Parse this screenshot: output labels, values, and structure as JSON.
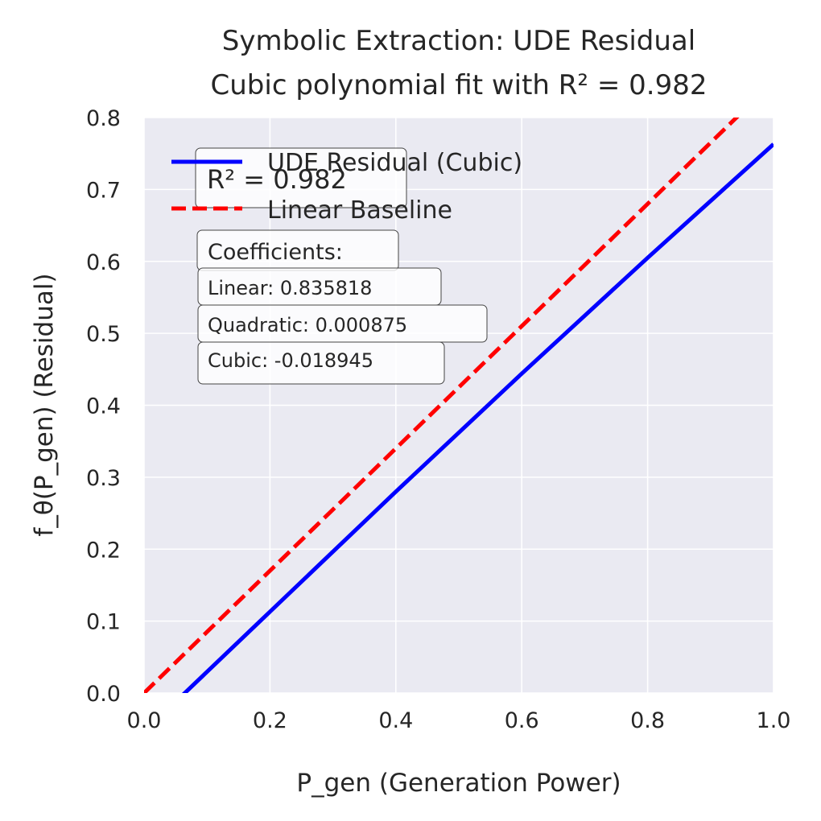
{
  "chart_data": {
    "type": "line",
    "title": "Symbolic Extraction: UDE Residual",
    "subtitle": "Cubic polynomial fit with R² = 0.982",
    "xlabel": "P_gen (Generation Power)",
    "ylabel": "f_θ(P_gen) (Residual)",
    "xlim": [
      0.0,
      1.0
    ],
    "ylim": [
      0.0,
      0.8
    ],
    "x_ticks": [
      "0.0",
      "0.2",
      "0.4",
      "0.6",
      "0.8",
      "1.0"
    ],
    "y_ticks": [
      "0.0",
      "0.1",
      "0.2",
      "0.3",
      "0.4",
      "0.5",
      "0.6",
      "0.7",
      "0.8"
    ],
    "grid": true,
    "legend_position": "top-left",
    "series": [
      {
        "name": "UDE Residual (Cubic)",
        "color": "#0000ff",
        "style": "solid",
        "x": [
          0.0,
          0.2,
          0.4,
          0.6,
          0.8,
          1.0
        ],
        "y": [
          -0.054,
          0.113,
          0.28,
          0.444,
          0.605,
          0.763
        ]
      },
      {
        "name": "Linear Baseline",
        "color": "#ff0000",
        "style": "dashed",
        "x": [
          0.0,
          0.2,
          0.4,
          0.6,
          0.8,
          1.0
        ],
        "y": [
          0.0,
          0.17,
          0.34,
          0.51,
          0.68,
          0.85
        ]
      }
    ],
    "annotations": {
      "r2": "R² = 0.982",
      "coefficients_header": "Coefficients:",
      "linear": "Linear: 0.835818",
      "quadratic": "Quadratic: 0.000875",
      "cubic": "Cubic: -0.018945"
    },
    "colors": {
      "plot_background": "#eaeaf2",
      "grid": "#ffffff"
    }
  }
}
